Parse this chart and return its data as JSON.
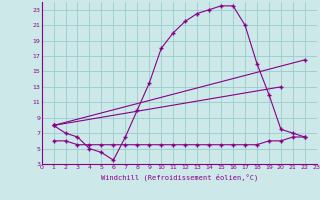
{
  "xlabel": "Windchill (Refroidissement éolien,°C)",
  "bg_color": "#cce8e8",
  "grid_color": "#99cccc",
  "line_color": "#880088",
  "xlim": [
    0,
    23
  ],
  "ylim": [
    3,
    24
  ],
  "xticks": [
    0,
    1,
    2,
    3,
    4,
    5,
    6,
    7,
    8,
    9,
    10,
    11,
    12,
    13,
    14,
    15,
    16,
    17,
    18,
    19,
    20,
    21,
    22,
    23
  ],
  "yticks": [
    3,
    5,
    7,
    9,
    11,
    13,
    15,
    17,
    19,
    21,
    23
  ],
  "curve1_x": [
    1,
    2,
    3,
    4,
    5,
    6,
    7,
    8,
    9,
    10,
    11,
    12,
    13,
    14,
    15,
    16,
    17,
    18,
    19,
    20,
    21,
    22
  ],
  "curve1_y": [
    8,
    7,
    6.5,
    5,
    4.5,
    3.5,
    6.5,
    10,
    13.5,
    18,
    20,
    21.5,
    22.5,
    23,
    23.5,
    23.5,
    21,
    16,
    12,
    7.5,
    7,
    6.5
  ],
  "curve2_x": [
    1,
    22
  ],
  "curve2_y": [
    8,
    16.5
  ],
  "curve3_x": [
    1,
    20
  ],
  "curve3_y": [
    8,
    13
  ],
  "curve4_x": [
    1,
    2,
    3,
    4,
    5,
    6,
    7,
    8,
    9,
    10,
    11,
    12,
    13,
    14,
    15,
    16,
    17,
    18,
    19,
    20,
    21,
    22
  ],
  "curve4_y": [
    6,
    6,
    5.5,
    5.5,
    5.5,
    5.5,
    5.5,
    5.5,
    5.5,
    5.5,
    5.5,
    5.5,
    5.5,
    5.5,
    5.5,
    5.5,
    5.5,
    5.5,
    6,
    6,
    6.5,
    6.5
  ]
}
